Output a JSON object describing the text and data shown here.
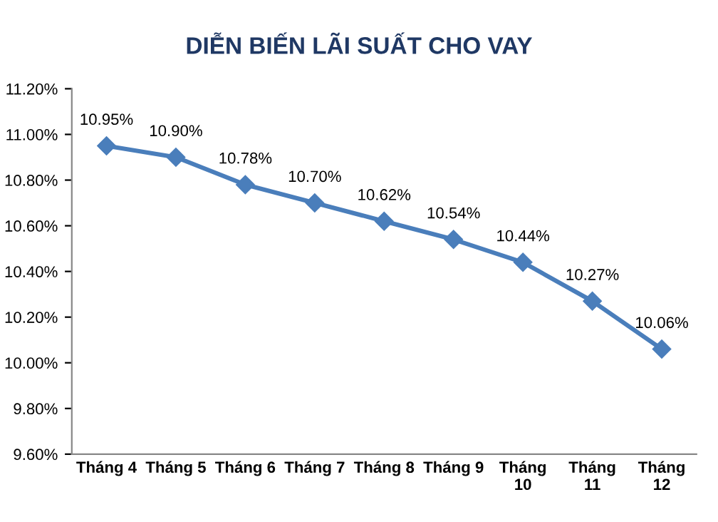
{
  "chart_data": {
    "type": "line",
    "title": "DIỄN BIẾN LÃI SUẤT CHO VAY",
    "categories": [
      "Tháng 4",
      "Tháng 5",
      "Tháng 6",
      "Tháng 7",
      "Tháng 8",
      "Tháng 9",
      "Tháng\n10",
      "Tháng\n11",
      "Tháng\n12"
    ],
    "series": [
      {
        "color": "#4a7ebb",
        "values": [
          10.95,
          10.9,
          10.78,
          10.7,
          10.62,
          10.54,
          10.44,
          10.27,
          10.06
        ],
        "value_labels": [
          "10.95%",
          "10.90%",
          "10.78%",
          "10.70%",
          "10.62%",
          "10.54%",
          "10.44%",
          "10.27%",
          "10.06%"
        ]
      }
    ],
    "ylim": [
      9.6,
      11.2
    ],
    "yticks": [
      {
        "value": 9.6,
        "label": "9.60%"
      },
      {
        "value": 9.8,
        "label": "9.80%"
      },
      {
        "value": 10.0,
        "label": "10.00%"
      },
      {
        "value": 10.2,
        "label": "10.20%"
      },
      {
        "value": 10.4,
        "label": "10.40%"
      },
      {
        "value": 10.6,
        "label": "10.60%"
      },
      {
        "value": 10.8,
        "label": "10.80%"
      },
      {
        "value": 11.0,
        "label": "11.00%"
      },
      {
        "value": 11.2,
        "label": "11.20%"
      }
    ],
    "marker": "diamond",
    "line_style": "solid",
    "grid": false,
    "legend": false
  }
}
